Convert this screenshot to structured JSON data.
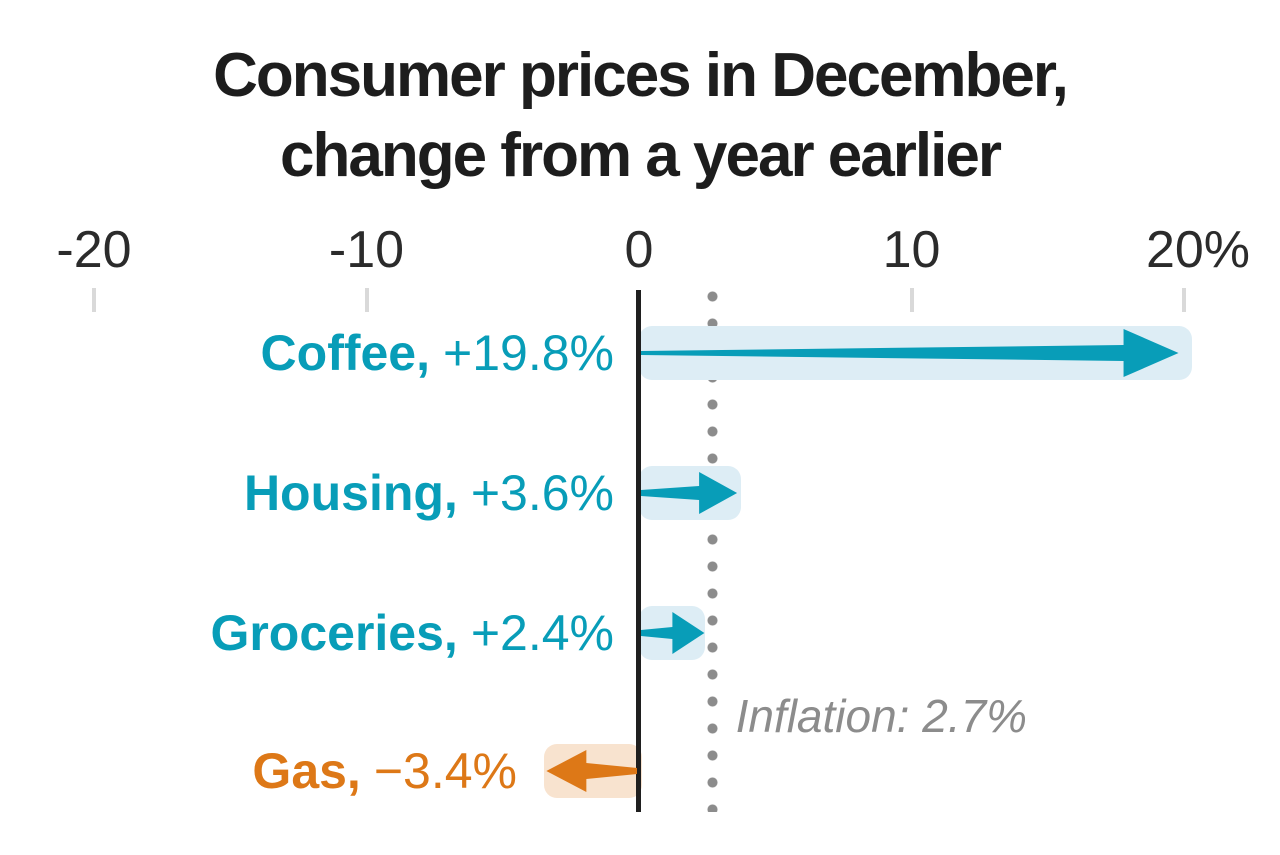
{
  "title": {
    "line1": "Consumer prices in December,",
    "line2": "change from a year earlier"
  },
  "chart_data": {
    "type": "bar",
    "orientation": "horizontal-arrows",
    "title": "Consumer prices in December, change from a year earlier",
    "categories": [
      "Coffee",
      "Housing",
      "Groceries",
      "Gas"
    ],
    "category_display": [
      "Coffee,",
      "Housing,",
      "Groceries,",
      "Gas,"
    ],
    "values": [
      19.8,
      3.6,
      2.4,
      -3.4
    ],
    "value_labels": [
      "+19.8%",
      "+3.6%",
      "+2.4%",
      "−3.4%"
    ],
    "x_axis": {
      "range": [
        -20,
        20
      ],
      "ticks": [
        -20,
        -10,
        0,
        10,
        20
      ],
      "tick_labels": [
        "-20",
        "-10",
        "0",
        "10",
        "20%"
      ],
      "unit": "%"
    },
    "annotation": {
      "label": "Inflation: 2.7%",
      "value": 2.7
    },
    "legend": "none",
    "grid": "off",
    "colors": {
      "positive": "#089db8",
      "positive_band": "#ddedf5",
      "negative": "#dd7817",
      "negative_band": "#f8e3cf",
      "zero_line": "#1f1f1f",
      "tick": "#d9d9d9",
      "tick_label": "#2b2b2b",
      "annotation_gray": "#8c8c8c",
      "title_color": "#1d1d1d"
    }
  }
}
